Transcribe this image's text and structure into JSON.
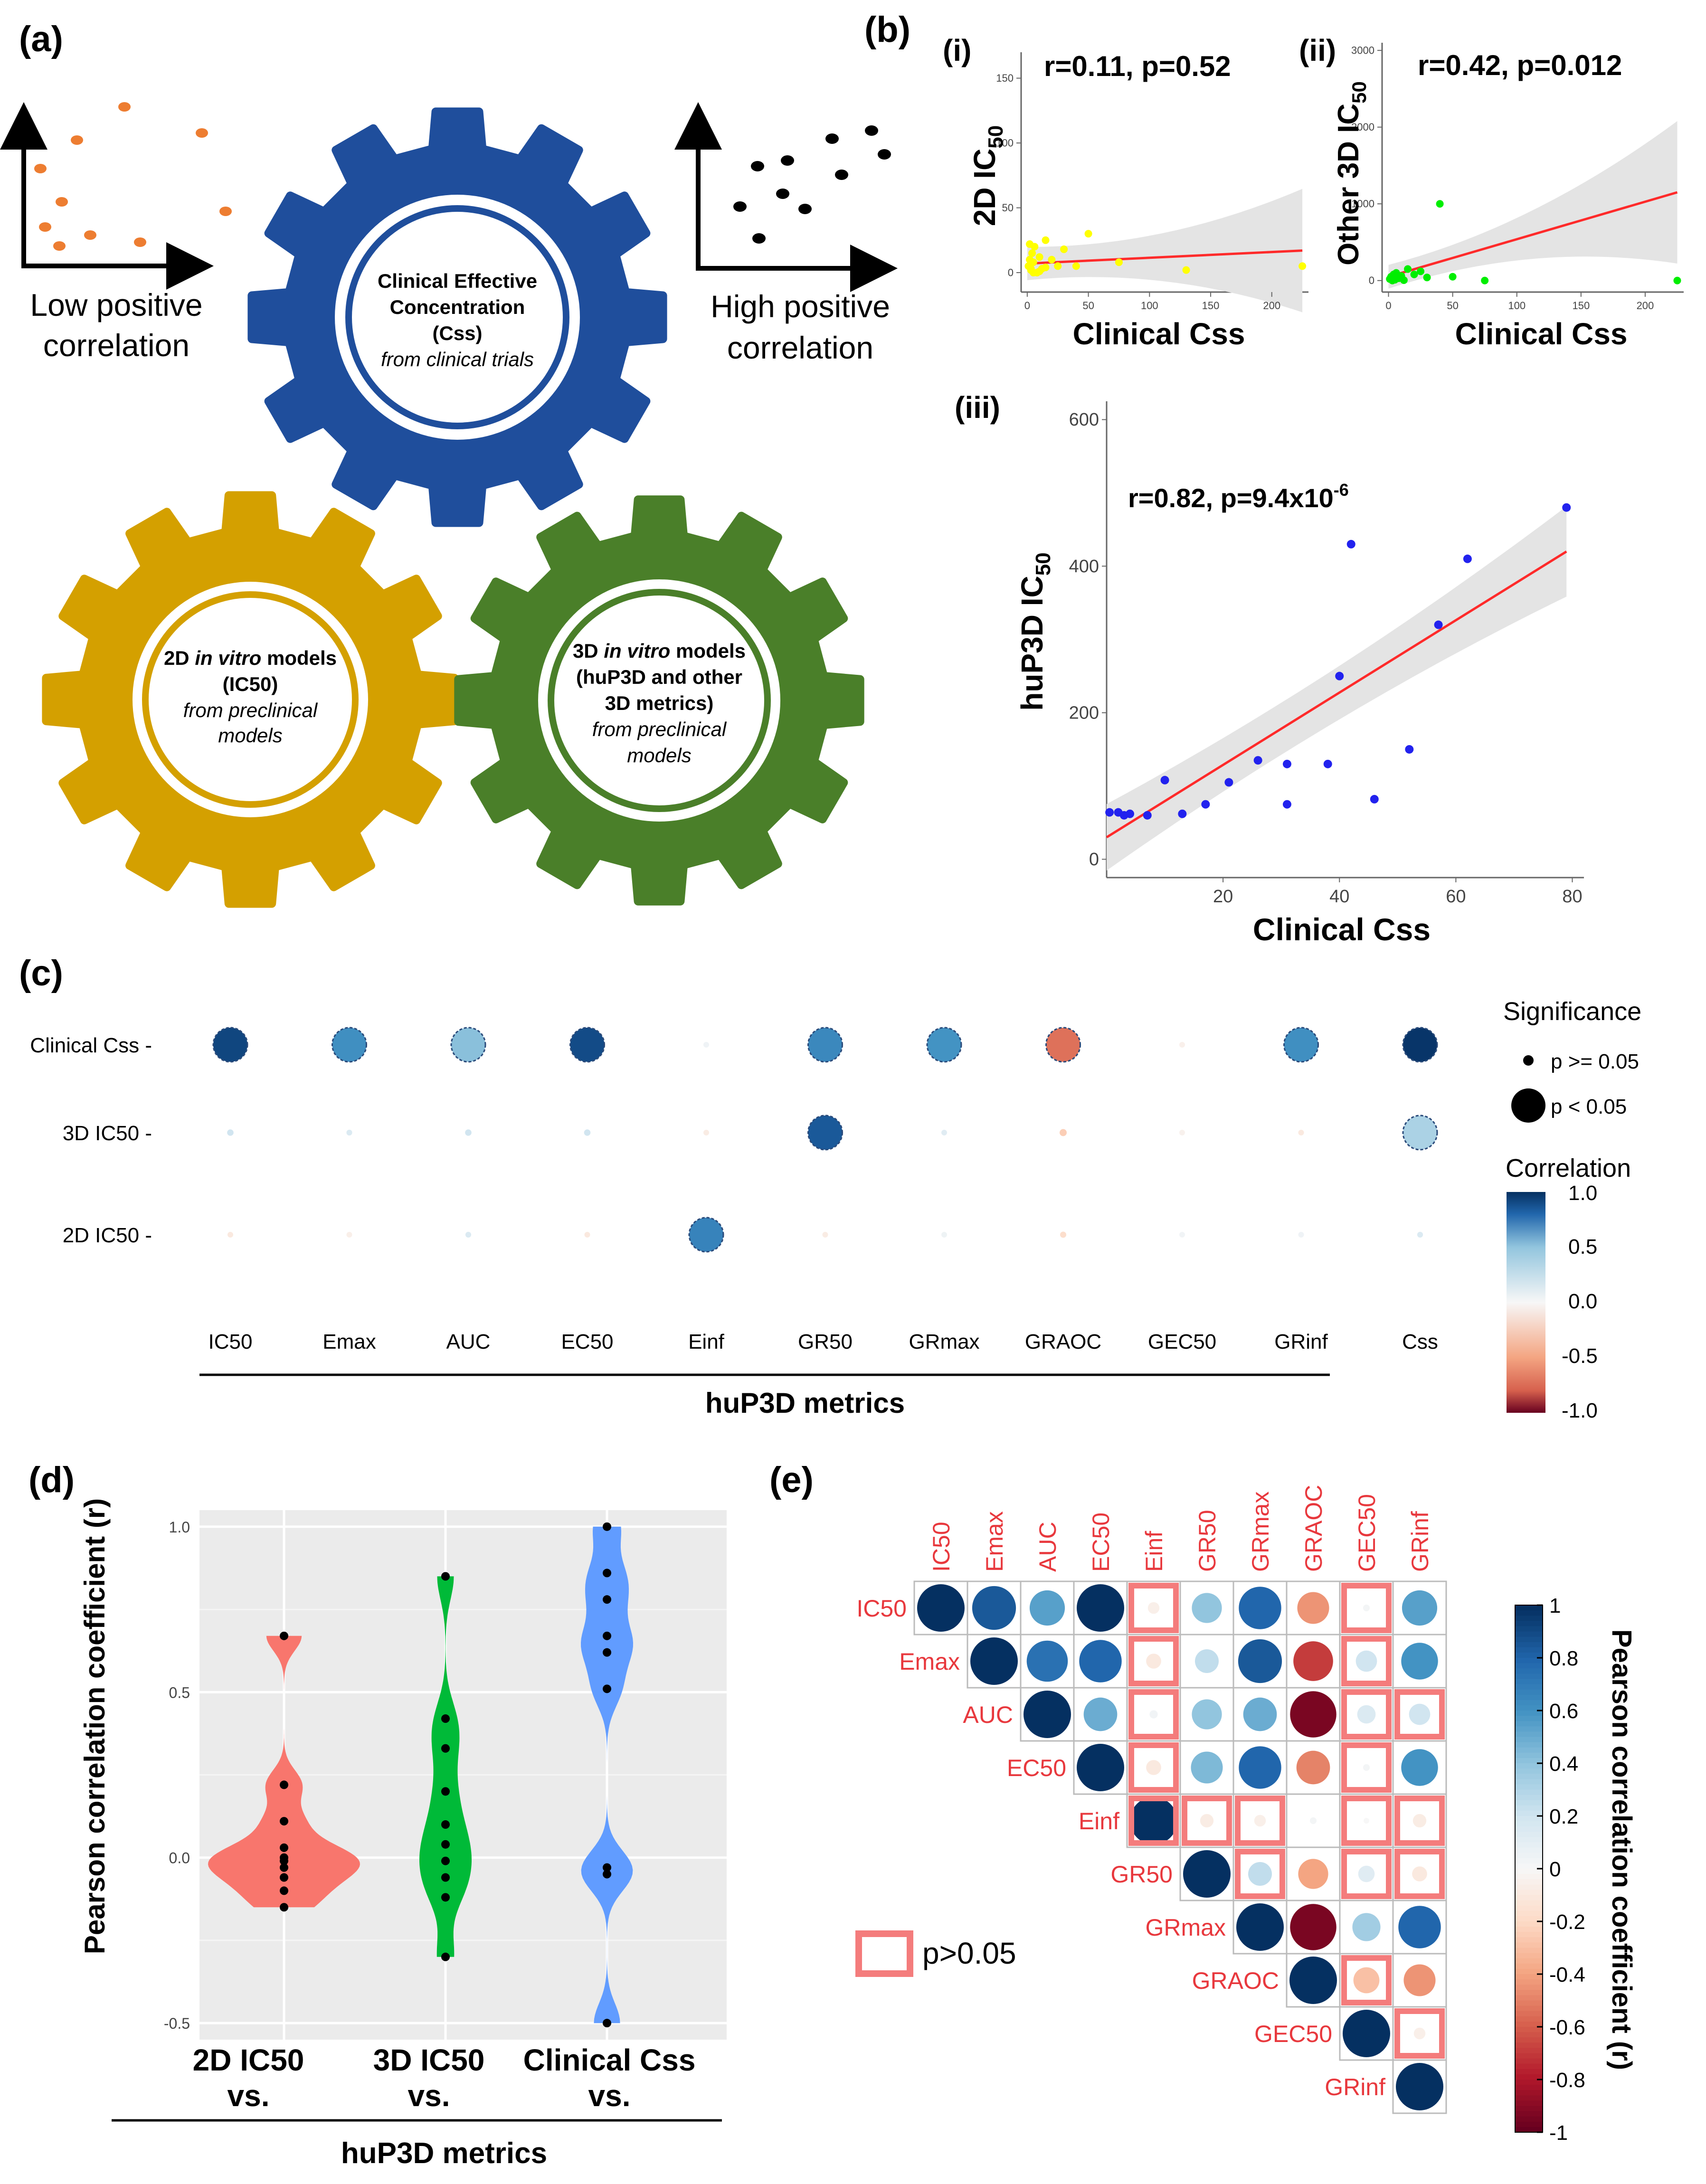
{
  "panel_labels": {
    "a": "(a)",
    "b": "(b)",
    "c": "(c)",
    "d": "(d)",
    "e": "(e)"
  },
  "panel_a": {
    "low_caption": [
      "Low positive",
      "correlation"
    ],
    "high_caption": [
      "High positive",
      "correlation"
    ],
    "gear_clinical": {
      "lines": [
        "Clinical  Effective",
        "Concentration",
        "(Css)"
      ],
      "italic": "from clinical trials",
      "color": "#1f4e9c"
    },
    "gear_2d": {
      "line1_pre": "2D ",
      "line1_italic": "in vitro",
      "line1_post": " models",
      "line2": "(IC50)",
      "italic": [
        "from preclinical",
        "models"
      ],
      "color": "#d4a000"
    },
    "gear_3d": {
      "line1_pre": "3D ",
      "line1_italic": "in vitro",
      "line1_post": " models",
      "line2": "(huP3D and other",
      "line3": "3D metrics)",
      "italic": [
        "from preclinical",
        "models"
      ],
      "color": "#4a7f29"
    }
  },
  "chart_data": [
    {
      "id": "b_i",
      "type": "scatter",
      "subpanel": "(i)",
      "annotation": "r=0.11, p=0.52",
      "xlabel": "Clinical Css",
      "ylabel": "2D IC",
      "ylabel_sub": "50",
      "xlim": [
        -5,
        230
      ],
      "ylim": [
        -15,
        170
      ],
      "xticks": [
        0,
        50,
        100,
        150,
        200
      ],
      "yticks": [
        0,
        50,
        100,
        150
      ],
      "point_color": "#ffff00",
      "x": [
        1,
        2,
        3,
        4,
        5,
        6,
        8,
        10,
        12,
        15,
        20,
        25,
        30,
        40,
        50,
        75,
        130,
        225,
        5,
        3,
        2,
        15,
        10
      ],
      "y": [
        5,
        10,
        2,
        15,
        8,
        20,
        0,
        12,
        3,
        25,
        10,
        5,
        18,
        5,
        30,
        8,
        2,
        5,
        0,
        3,
        22,
        4,
        1
      ],
      "fit": {
        "x0": 0,
        "y0": 7,
        "x1": 225,
        "y1": 17
      }
    },
    {
      "id": "b_ii",
      "type": "scatter",
      "subpanel": "(ii)",
      "annotation": "r=0.42, p=0.012",
      "xlabel": "Clinical Css",
      "ylabel": "Other 3D IC",
      "ylabel_sub": "50",
      "xlim": [
        -5,
        230
      ],
      "ylim": [
        -150,
        3100
      ],
      "xticks": [
        0,
        50,
        100,
        150,
        200
      ],
      "yticks": [
        0,
        1000,
        2000,
        3000
      ],
      "point_color": "#00ee00",
      "x": [
        1,
        2,
        3,
        4,
        5,
        6,
        8,
        10,
        12,
        15,
        20,
        25,
        30,
        40,
        50,
        75,
        225
      ],
      "y": [
        20,
        50,
        0,
        80,
        10,
        100,
        30,
        60,
        5,
        150,
        80,
        120,
        40,
        1000,
        50,
        0,
        0
      ],
      "fit": {
        "x0": 0,
        "y0": 50,
        "x1": 225,
        "y1": 1150
      }
    },
    {
      "id": "b_iii",
      "type": "scatter",
      "subpanel": "(iii)",
      "annotation": "r=0.82, p=9.4x10",
      "annotation_sup": "-6",
      "xlabel": "Clinical Css",
      "ylabel": "huP3D IC",
      "ylabel_sub": "50",
      "xlim": [
        0,
        82
      ],
      "ylim": [
        -25,
        625
      ],
      "xticks": [
        20,
        40,
        60,
        80
      ],
      "yticks": [
        0,
        200,
        400,
        600
      ],
      "point_color": "#2222ee",
      "x": [
        0.5,
        2,
        3,
        4,
        7,
        10,
        13,
        17,
        21,
        26,
        31,
        31,
        38,
        40,
        42,
        46,
        52,
        57,
        62,
        79
      ],
      "y": [
        64,
        64,
        60,
        62,
        60,
        108,
        62,
        75,
        105,
        135,
        75,
        130,
        130,
        250,
        430,
        82,
        150,
        320,
        410,
        480
      ],
      "fit": {
        "x0": 0,
        "y0": 30,
        "x1": 79,
        "y1": 420
      }
    },
    {
      "id": "c",
      "type": "bubble-matrix",
      "title": "huP3D metrics",
      "columns": [
        "IC50",
        "Emax",
        "AUC",
        "EC50",
        "Einf",
        "GR50",
        "GRmax",
        "GRAOC",
        "GEC50",
        "GRinf",
        "Css"
      ],
      "rows": [
        "Clinical Css",
        "3D IC50",
        "2D IC50"
      ],
      "values": [
        [
          0.92,
          0.62,
          0.42,
          0.9,
          0.04,
          0.65,
          0.6,
          -0.55,
          -0.05,
          0.62,
          0.98
        ],
        [
          0.2,
          0.15,
          0.2,
          0.2,
          -0.08,
          0.85,
          0.12,
          -0.25,
          -0.04,
          -0.1,
          0.32
        ],
        [
          -0.1,
          -0.06,
          0.15,
          -0.1,
          0.67,
          -0.08,
          0.05,
          -0.18,
          0.03,
          0.04,
          0.15
        ]
      ],
      "significant": [
        [
          true,
          true,
          true,
          true,
          false,
          true,
          true,
          true,
          false,
          true,
          true
        ],
        [
          false,
          false,
          false,
          false,
          false,
          true,
          false,
          false,
          false,
          false,
          true
        ],
        [
          false,
          false,
          false,
          false,
          true,
          false,
          false,
          false,
          false,
          false,
          false
        ]
      ],
      "legend": {
        "significance_title": "Significance",
        "sig_labels": [
          "p >= 0.05",
          "p < 0.05"
        ],
        "corr_title": "Correlation",
        "corr_ticks": [
          "1.0",
          "0.5",
          "0.0",
          "-0.5",
          "-1.0"
        ]
      }
    },
    {
      "id": "d",
      "type": "violin",
      "ylabel": "Pearson correlation coefficient (r)",
      "ylim": [
        -0.55,
        1.05
      ],
      "yticks": [
        "-0.5",
        "0.0",
        "0.5",
        "1.0"
      ],
      "group_label": "huP3D metrics",
      "groups": [
        {
          "label": "2D IC50",
          "sub": "vs.",
          "color": "#f8766d",
          "points": [
            0.67,
            0.22,
            0.11,
            0.03,
            0.0,
            -0.01,
            -0.03,
            -0.06,
            -0.1,
            -0.15
          ]
        },
        {
          "label": "3D IC50",
          "sub": "vs.",
          "color": "#00ba38",
          "points": [
            0.85,
            0.42,
            0.33,
            0.2,
            0.1,
            0.04,
            -0.01,
            -0.06,
            -0.12,
            -0.3
          ]
        },
        {
          "label": "Clinical Css",
          "sub": "vs.",
          "color": "#619cff",
          "points": [
            1.0,
            0.86,
            0.78,
            0.67,
            0.62,
            0.51,
            -0.03,
            -0.05,
            -0.5
          ]
        }
      ]
    },
    {
      "id": "e",
      "type": "correlation-matrix",
      "labels": [
        "IC50",
        "Emax",
        "AUC",
        "EC50",
        "Einf",
        "GR50",
        "GRmax",
        "GRAOC",
        "GEC50",
        "GRinf"
      ],
      "upper": [
        [
          1,
          0.85,
          0.55,
          1,
          -0.06,
          0.4,
          0.8,
          -0.45,
          0.02,
          0.55
        ],
        [
          1,
          0.75,
          0.8,
          -0.1,
          0.25,
          0.85,
          -0.7,
          0.2,
          0.6
        ],
        [
          1,
          0.5,
          0.03,
          0.4,
          0.5,
          -0.95,
          0.15,
          0.2
        ],
        [
          1,
          -0.1,
          0.45,
          0.8,
          -0.5,
          0.02,
          0.6
        ],
        [
          1,
          -0.08,
          -0.06,
          0.02,
          0.0,
          -0.08
        ],
        [
          1,
          0.25,
          -0.4,
          0.12,
          -0.1
        ],
        [
          1,
          -0.95,
          0.35,
          0.8
        ],
        [
          1,
          -0.3,
          -0.45
        ],
        [
          1,
          -0.06
        ],
        [
          1
        ]
      ],
      "nonsig": [
        [
          4,
          0
        ],
        [
          8,
          0
        ],
        [
          4,
          1
        ],
        [
          8,
          1
        ],
        [
          4,
          2
        ],
        [
          8,
          2
        ],
        [
          9,
          2
        ],
        [
          4,
          3
        ],
        [
          8,
          3
        ],
        [
          4,
          4
        ],
        [
          5,
          4
        ],
        [
          6,
          4
        ],
        [
          8,
          4
        ],
        [
          9,
          4
        ],
        [
          6,
          5
        ],
        [
          8,
          5
        ],
        [
          9,
          5
        ],
        [
          8,
          7
        ],
        [
          9,
          8
        ]
      ],
      "legend_label": "p>0.05",
      "colorbar_title": "Pearson correlation coefficient (r)",
      "colorbar_ticks": [
        "1",
        "0.8",
        "0.6",
        "0.4",
        "0.2",
        "0",
        "-0.2",
        "-0.4",
        "-0.6",
        "-0.8",
        "-1"
      ]
    }
  ]
}
